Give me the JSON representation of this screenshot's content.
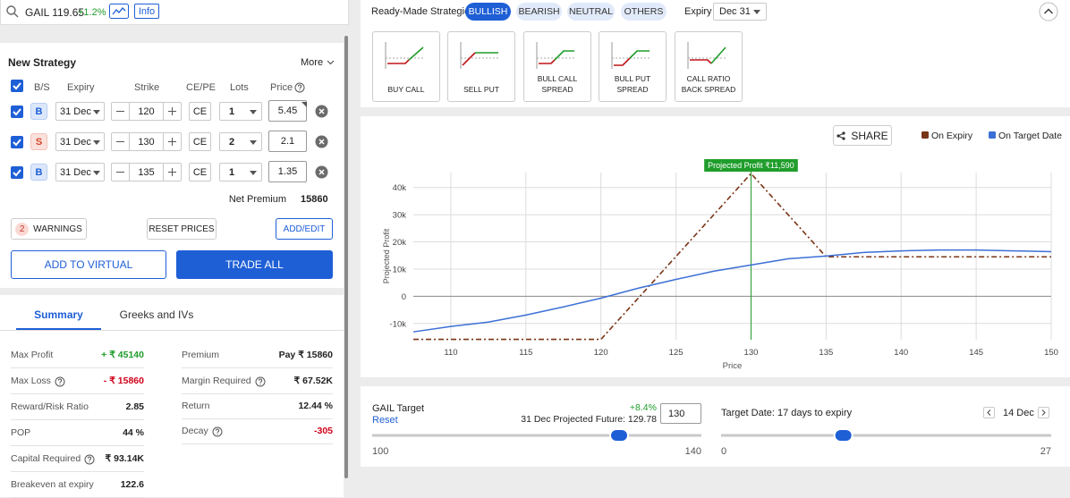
{
  "search": {
    "symbol": "GAIL 119.65",
    "change": "+1.2%",
    "info": "Info"
  },
  "strategy": {
    "title": "New Strategy",
    "more": "More",
    "headers": [
      "B/S",
      "Expiry",
      "Strike",
      "CE/PE",
      "Lots",
      "Price"
    ],
    "legs": [
      {
        "side": "B",
        "expiry": "31 Dec",
        "strike": "120",
        "type": "CE",
        "lots": "1",
        "price": "5.45"
      },
      {
        "side": "S",
        "expiry": "31 Dec",
        "strike": "130",
        "type": "CE",
        "lots": "2",
        "price": "2.1"
      },
      {
        "side": "B",
        "expiry": "31 Dec",
        "strike": "135",
        "type": "CE",
        "lots": "1",
        "price": "1.35"
      }
    ],
    "net_premium_label": "Net Premium",
    "net_premium": "15860",
    "warnings_count": "2",
    "warnings": "WARNINGS",
    "reset_prices": "RESET PRICES",
    "add_edit": "ADD/EDIT",
    "add_virtual": "ADD TO VIRTUAL",
    "trade_all": "TRADE ALL"
  },
  "tabs": [
    "Summary",
    "Greeks and IVs"
  ],
  "summary": {
    "left": [
      [
        "Max Profit",
        "+ ₹ 45140"
      ],
      [
        "Max Loss",
        "- ₹ 15860"
      ],
      [
        "Reward/Risk Ratio",
        "2.85"
      ],
      [
        "POP",
        "44 %"
      ],
      [
        "Capital Required",
        "₹ 93.14K"
      ],
      [
        "Breakeven at expiry",
        "122.6"
      ]
    ],
    "right": [
      [
        "Premium",
        "Pay ₹ 15860"
      ],
      [
        "Margin Required",
        "₹ 67.52K"
      ],
      [
        "Return",
        "12.44 %"
      ],
      [
        "Decay",
        "-305"
      ]
    ]
  },
  "ready_made": {
    "title": "Ready-Made Strategies",
    "filters": [
      "BULLISH",
      "BEARISH",
      "NEUTRAL",
      "OTHERS"
    ],
    "expiry_label": "Expiry",
    "expiry": "Dec 31",
    "strategies": [
      "BUY CALL",
      "SELL PUT",
      "BULL CALL SPREAD",
      "BULL PUT SPREAD",
      "CALL RATIO BACK SPREAD"
    ]
  },
  "share": "SHARE",
  "chart_data": {
    "type": "line",
    "y_label": "Projected Profit",
    "x_label": "Price",
    "xlim": [
      107.5,
      150
    ],
    "xticks": [
      110,
      115,
      120,
      125,
      130,
      135,
      140,
      145,
      150
    ],
    "ylim": [
      -16000,
      45500
    ],
    "yticks": [
      {
        "value": -10000,
        "label": "-10k"
      },
      0,
      {
        "value": 10000,
        "label": "10k"
      },
      {
        "value": 20000,
        "label": "20k"
      },
      {
        "value": 30000,
        "label": "30k"
      },
      {
        "value": 40000,
        "label": "40k"
      }
    ],
    "grid": true,
    "series": [
      {
        "name": "On Expiry",
        "color": "#7a3516",
        "x": [
          107.5,
          120,
          130,
          135,
          150
        ],
        "values": [
          -15860,
          -15860,
          45140,
          14500,
          14500
        ]
      },
      {
        "name": "On Target Date",
        "color": "#3b6fd6",
        "x": [
          107.5,
          110,
          112.5,
          115,
          117.5,
          120,
          122.5,
          125,
          127.5,
          130,
          132.5,
          135,
          137.5,
          140,
          142.5,
          145,
          147.5,
          150
        ],
        "values": [
          -13100,
          -11100,
          -9500,
          -6900,
          -3900,
          -700,
          3000,
          6200,
          9200,
          11500,
          13800,
          14800,
          16100,
          16700,
          17000,
          17000,
          16700,
          16400
        ]
      }
    ],
    "marker": {
      "x": 130,
      "label": "Projected Profit ₹11,590",
      "color": "#1f9d2b"
    }
  },
  "controls": {
    "target_label": "GAIL Target",
    "reset": "Reset",
    "change": "+8.4%",
    "projected": "31 Dec Projected Future: 129.78",
    "target_value": 130,
    "target_min": 100,
    "target_max": 140,
    "date_label": "Target Date: 17 days to expiry",
    "date": "14 Dec",
    "date_value": 10,
    "date_min": 0,
    "date_max": 27
  }
}
